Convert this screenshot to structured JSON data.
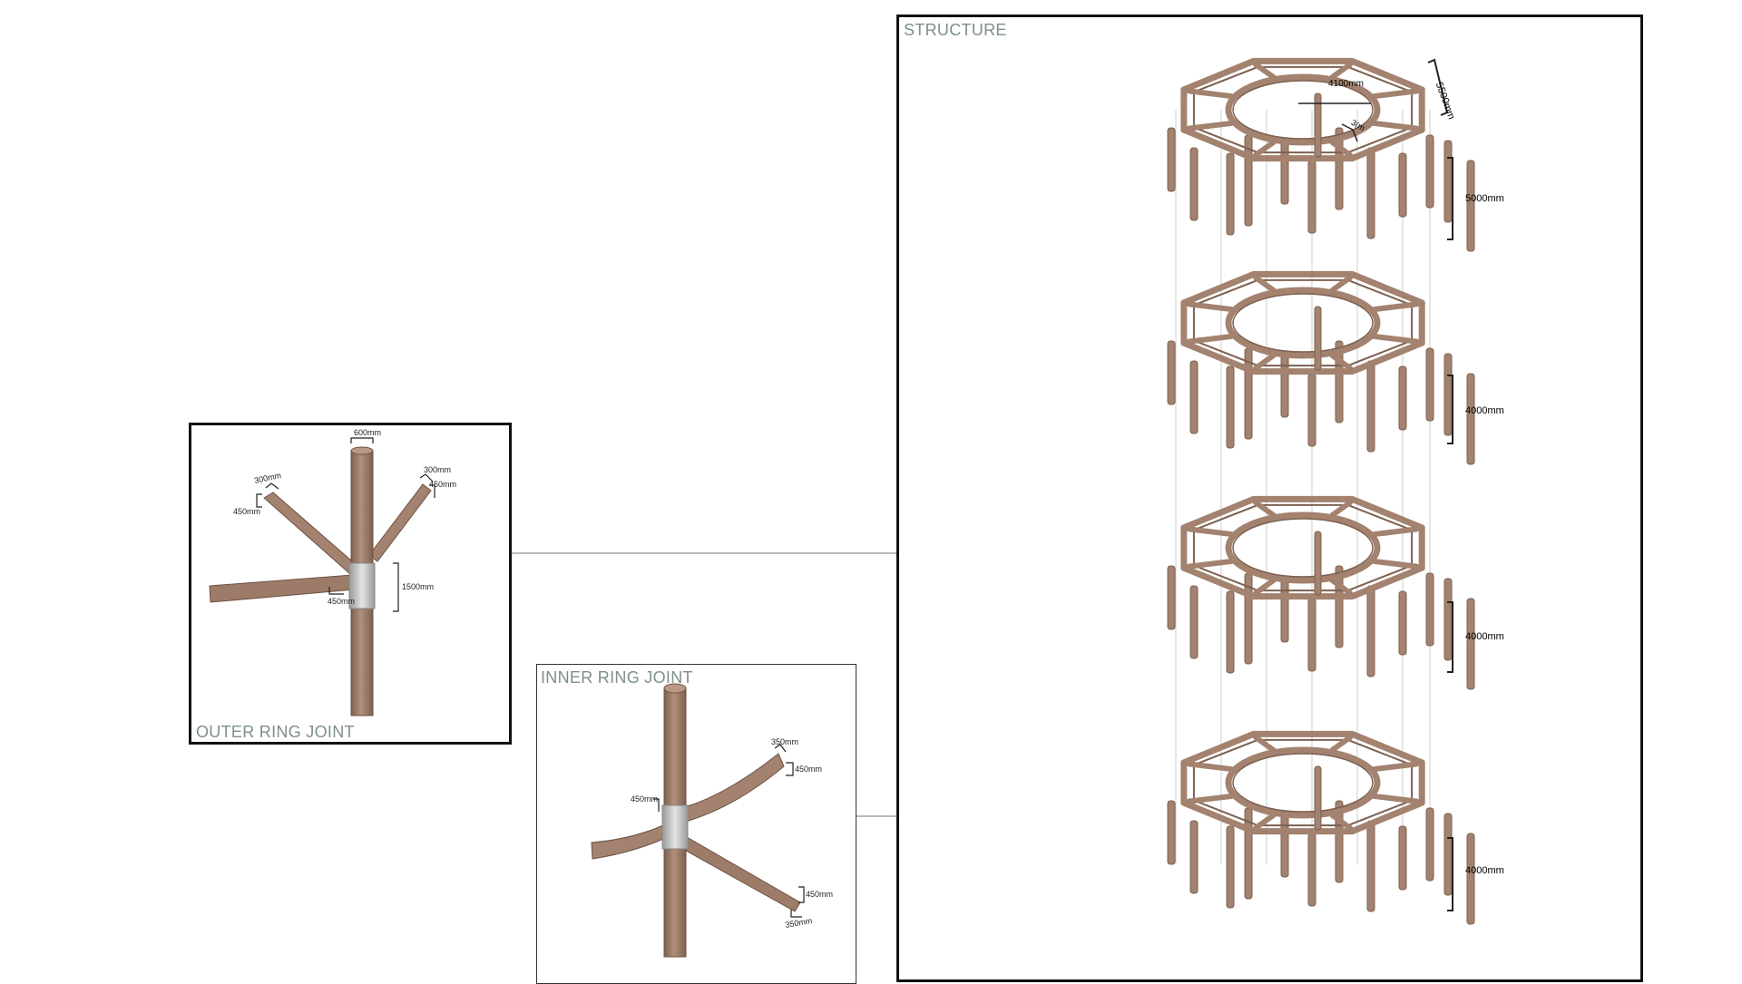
{
  "panels": {
    "structure": {
      "title": "STRUCTURE",
      "dims": {
        "diameter": "4100mm",
        "width": "5500mm",
        "depth": "3(m",
        "tier1": "5000mm",
        "tier2": "4000mm",
        "tier3": "4000mm",
        "tier4": "4000mm"
      }
    },
    "outer_joint": {
      "title": "OUTER RING JOINT",
      "dims": {
        "top": "600mm",
        "arm_right_a": "300mm",
        "arm_right_b": "450mm",
        "arm_left_a": "300mm",
        "arm_left_b": "450mm",
        "sleeve": "1500mm",
        "beam": "450mm"
      }
    },
    "inner_joint": {
      "title": "INNER RING JOINT",
      "dims": {
        "arm_top_a": "350mm",
        "arm_top_b": "450mm",
        "sleeve": "450mm",
        "arm_bottom_a": "450mm",
        "arm_bottom_b": "350mm"
      }
    }
  },
  "colors": {
    "wood": "#a3826f",
    "wood_dark": "#7d6150",
    "steel": "#c9c9c9",
    "label": "#7d9089",
    "leader": "#6a7a73"
  }
}
